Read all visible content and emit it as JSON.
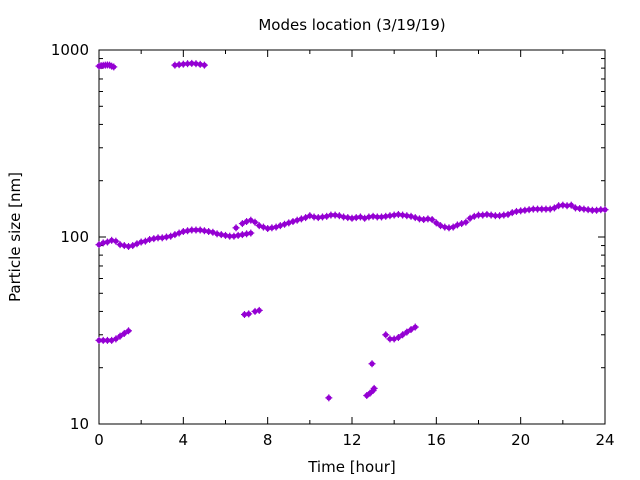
{
  "chart_data": {
    "type": "scatter",
    "title": "Modes location (3/19/19)",
    "xlabel": "Time [hour]",
    "ylabel": "Particle size [nm]",
    "xlim": [
      0,
      24
    ],
    "ylim": [
      10,
      1000
    ],
    "y_scale": "log",
    "grid": false,
    "legend": "none",
    "marker_color": "#9400d3",
    "x_ticks": [
      0,
      4,
      8,
      12,
      16,
      20,
      24
    ],
    "x_tick_labels": [
      "0",
      "4",
      "8",
      "12",
      "16",
      "20",
      "24"
    ],
    "y_ticks": [
      10,
      100,
      1000
    ],
    "y_tick_labels": [
      "10",
      "100",
      "1000"
    ],
    "series": [
      {
        "points": [
          [
            0.0,
            820
          ],
          [
            0.1,
            825
          ],
          [
            0.2,
            828
          ],
          [
            0.3,
            830
          ],
          [
            0.4,
            832
          ],
          [
            0.5,
            830
          ],
          [
            0.6,
            820
          ],
          [
            0.7,
            812
          ],
          [
            3.6,
            830
          ],
          [
            3.8,
            835
          ],
          [
            4.0,
            840
          ],
          [
            4.2,
            845
          ],
          [
            4.4,
            848
          ],
          [
            4.6,
            845
          ],
          [
            4.8,
            838
          ],
          [
            5.0,
            830
          ]
        ]
      },
      {
        "points": [
          [
            0.0,
            91
          ],
          [
            0.2,
            93
          ],
          [
            0.4,
            94
          ],
          [
            0.6,
            96
          ],
          [
            0.8,
            95
          ],
          [
            1.0,
            91
          ],
          [
            1.2,
            90
          ],
          [
            1.4,
            89
          ],
          [
            1.6,
            90
          ],
          [
            1.8,
            92
          ],
          [
            2.0,
            94
          ],
          [
            2.2,
            95
          ],
          [
            2.4,
            97
          ],
          [
            2.6,
            98
          ],
          [
            2.8,
            99
          ],
          [
            3.0,
            99
          ],
          [
            3.2,
            100
          ],
          [
            3.4,
            101
          ],
          [
            3.6,
            103
          ],
          [
            3.8,
            105
          ],
          [
            4.0,
            107
          ],
          [
            4.2,
            108
          ],
          [
            4.4,
            109
          ],
          [
            4.6,
            109
          ],
          [
            4.8,
            109
          ],
          [
            5.0,
            108
          ],
          [
            5.2,
            107
          ],
          [
            5.4,
            106
          ],
          [
            5.6,
            104
          ],
          [
            5.8,
            103
          ],
          [
            6.0,
            102
          ],
          [
            6.2,
            101
          ],
          [
            6.4,
            101
          ],
          [
            6.6,
            102
          ],
          [
            6.8,
            103
          ],
          [
            7.0,
            104
          ],
          [
            7.2,
            105
          ],
          [
            6.5,
            112
          ],
          [
            6.8,
            118
          ],
          [
            7.0,
            121
          ],
          [
            7.2,
            123
          ],
          [
            7.4,
            120
          ],
          [
            7.6,
            115
          ],
          [
            7.8,
            113
          ],
          [
            8.0,
            111
          ],
          [
            8.2,
            112
          ],
          [
            8.4,
            113
          ],
          [
            8.6,
            115
          ],
          [
            8.8,
            117
          ],
          [
            9.0,
            119
          ],
          [
            9.2,
            121
          ],
          [
            9.4,
            123
          ],
          [
            9.6,
            125
          ],
          [
            9.8,
            127
          ],
          [
            10.0,
            130
          ],
          [
            10.2,
            128
          ],
          [
            10.4,
            127
          ],
          [
            10.6,
            128
          ],
          [
            10.8,
            129
          ],
          [
            11.0,
            131
          ],
          [
            11.2,
            131
          ],
          [
            11.4,
            130
          ],
          [
            11.6,
            128
          ],
          [
            11.8,
            127
          ],
          [
            12.0,
            126
          ],
          [
            12.2,
            127
          ],
          [
            12.4,
            128
          ],
          [
            12.6,
            126
          ],
          [
            12.8,
            128
          ],
          [
            13.0,
            129
          ],
          [
            13.2,
            128
          ],
          [
            13.4,
            128
          ],
          [
            13.6,
            129
          ],
          [
            13.8,
            130
          ],
          [
            14.0,
            131
          ],
          [
            14.2,
            132
          ],
          [
            14.4,
            131
          ],
          [
            14.6,
            130
          ],
          [
            14.8,
            129
          ],
          [
            15.0,
            127
          ],
          [
            15.2,
            125
          ],
          [
            15.4,
            124
          ],
          [
            15.6,
            125
          ],
          [
            15.8,
            124
          ],
          [
            16.0,
            119
          ],
          [
            16.2,
            115
          ],
          [
            16.4,
            113
          ],
          [
            16.6,
            112
          ],
          [
            16.8,
            113
          ],
          [
            17.0,
            116
          ],
          [
            17.2,
            118
          ],
          [
            17.4,
            120
          ],
          [
            17.6,
            126
          ],
          [
            17.8,
            129
          ],
          [
            18.0,
            131
          ],
          [
            18.2,
            131
          ],
          [
            18.4,
            132
          ],
          [
            18.6,
            131
          ],
          [
            18.8,
            130
          ],
          [
            19.0,
            130
          ],
          [
            19.2,
            131
          ],
          [
            19.4,
            132
          ],
          [
            19.6,
            135
          ],
          [
            19.8,
            137
          ],
          [
            20.0,
            138
          ],
          [
            20.2,
            139
          ],
          [
            20.4,
            140
          ],
          [
            20.6,
            141
          ],
          [
            20.8,
            141
          ],
          [
            21.0,
            141
          ],
          [
            21.2,
            141
          ],
          [
            21.4,
            141
          ],
          [
            21.6,
            143
          ],
          [
            21.8,
            147
          ],
          [
            22.0,
            148
          ],
          [
            22.2,
            147
          ],
          [
            22.4,
            148
          ],
          [
            22.6,
            143
          ],
          [
            22.8,
            142
          ],
          [
            23.0,
            141
          ],
          [
            23.2,
            140
          ],
          [
            23.4,
            139
          ],
          [
            23.6,
            139
          ],
          [
            23.8,
            140
          ],
          [
            24.0,
            140
          ]
        ]
      },
      {
        "points": [
          [
            0.0,
            28
          ],
          [
            0.2,
            28
          ],
          [
            0.4,
            28
          ],
          [
            0.6,
            28
          ],
          [
            0.8,
            28.5
          ],
          [
            1.0,
            29.5
          ],
          [
            1.2,
            30.5
          ],
          [
            1.4,
            31.5
          ],
          [
            6.9,
            38.5
          ],
          [
            7.1,
            38.8
          ],
          [
            7.4,
            40
          ],
          [
            7.6,
            40.5
          ],
          [
            13.6,
            30
          ],
          [
            13.8,
            28.5
          ],
          [
            14.0,
            28.5
          ],
          [
            14.2,
            29
          ],
          [
            14.4,
            30
          ],
          [
            14.6,
            31
          ],
          [
            14.8,
            32
          ],
          [
            15.0,
            33
          ]
        ]
      },
      {
        "points": [
          [
            10.9,
            13.8
          ],
          [
            12.7,
            14.2
          ],
          [
            12.85,
            14.6
          ],
          [
            13.0,
            15.1
          ],
          [
            13.05,
            15.5
          ],
          [
            12.95,
            21
          ]
        ]
      }
    ]
  }
}
